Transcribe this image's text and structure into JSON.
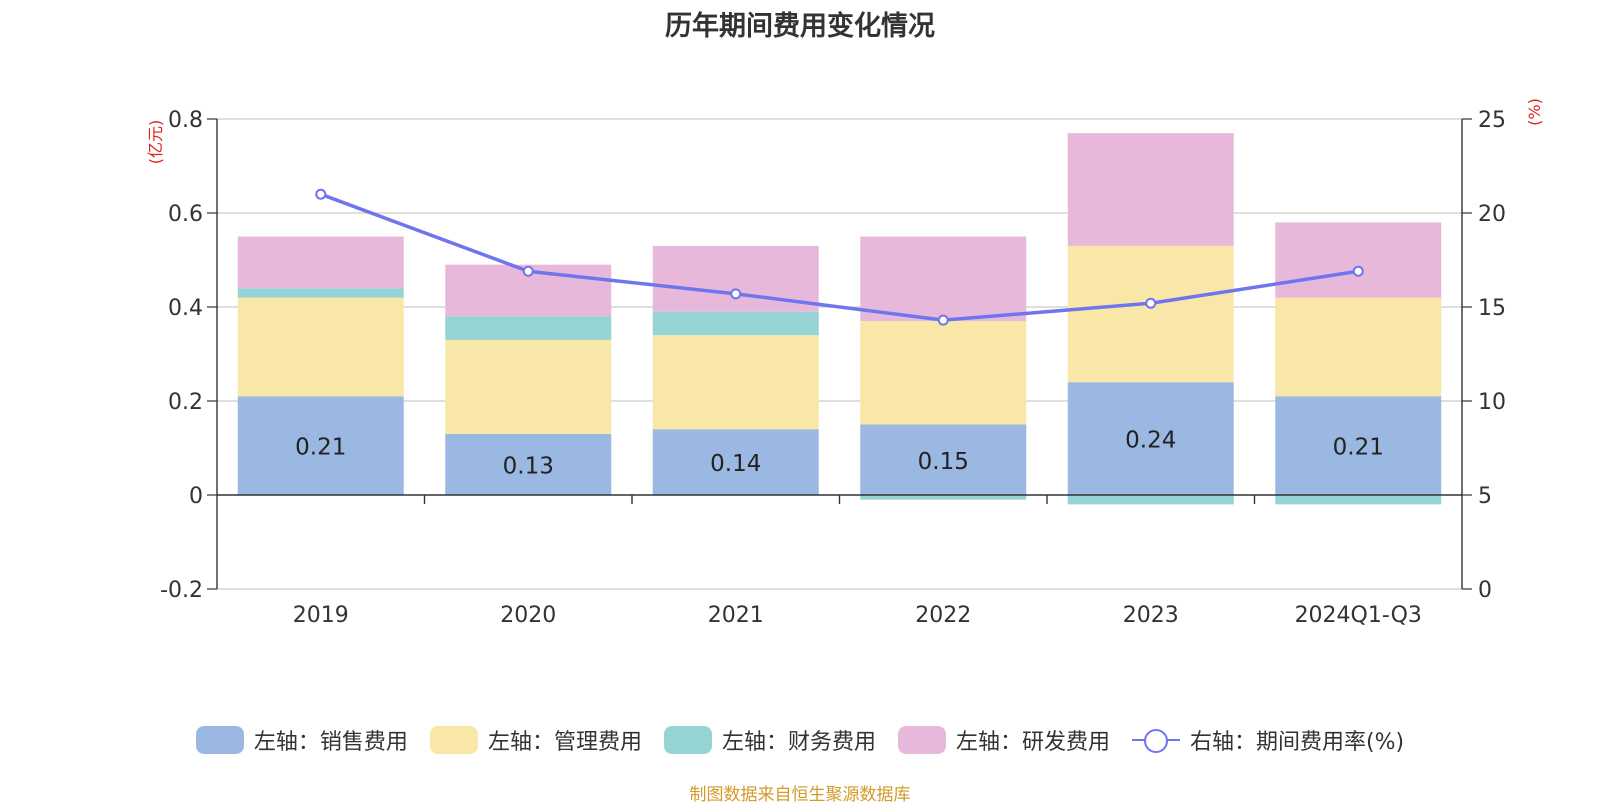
{
  "title": "历年期间费用变化情况",
  "source": "制图数据来自恒生聚源数据库",
  "chart_data": {
    "type": "bar",
    "stacked": true,
    "categories": [
      "2019",
      "2020",
      "2021",
      "2022",
      "2023",
      "2024Q1-Q3"
    ],
    "series": [
      {
        "name": "左轴：销售费用",
        "axis": "left",
        "color": "#9bb8e2",
        "values": [
          0.21,
          0.13,
          0.14,
          0.15,
          0.24,
          0.21
        ],
        "labels": [
          "0.21",
          "0.13",
          "0.14",
          "0.15",
          "0.24",
          "0.21"
        ]
      },
      {
        "name": "左轴：管理费用",
        "axis": "left",
        "color": "#f8e7a6",
        "values": [
          0.21,
          0.2,
          0.2,
          0.22,
          0.29,
          0.21
        ]
      },
      {
        "name": "左轴：财务费用",
        "axis": "left",
        "color": "#96d3d4",
        "values": [
          0.02,
          0.05,
          0.05,
          -0.01,
          -0.02,
          -0.02
        ]
      },
      {
        "name": "左轴：研发费用",
        "axis": "left",
        "color": "#e8b8da",
        "values": [
          0.11,
          0.11,
          0.14,
          0.18,
          0.24,
          0.16
        ]
      },
      {
        "name": "右轴：期间费用率(%)",
        "axis": "right",
        "type": "line",
        "color": "#6f75ee",
        "values": [
          21.0,
          16.9,
          15.7,
          14.3,
          15.2,
          16.9
        ]
      }
    ],
    "left_axis": {
      "label": "(亿元)",
      "min": -0.2,
      "max": 0.8,
      "ticks": [
        "-0.2",
        "0",
        "0.2",
        "0.4",
        "0.6",
        "0.8"
      ]
    },
    "right_axis": {
      "label": "(%)",
      "min": 0,
      "max": 25,
      "ticks": [
        "0",
        "5",
        "10",
        "15",
        "20",
        "25"
      ]
    },
    "grid": true,
    "legend_position": "bottom"
  }
}
